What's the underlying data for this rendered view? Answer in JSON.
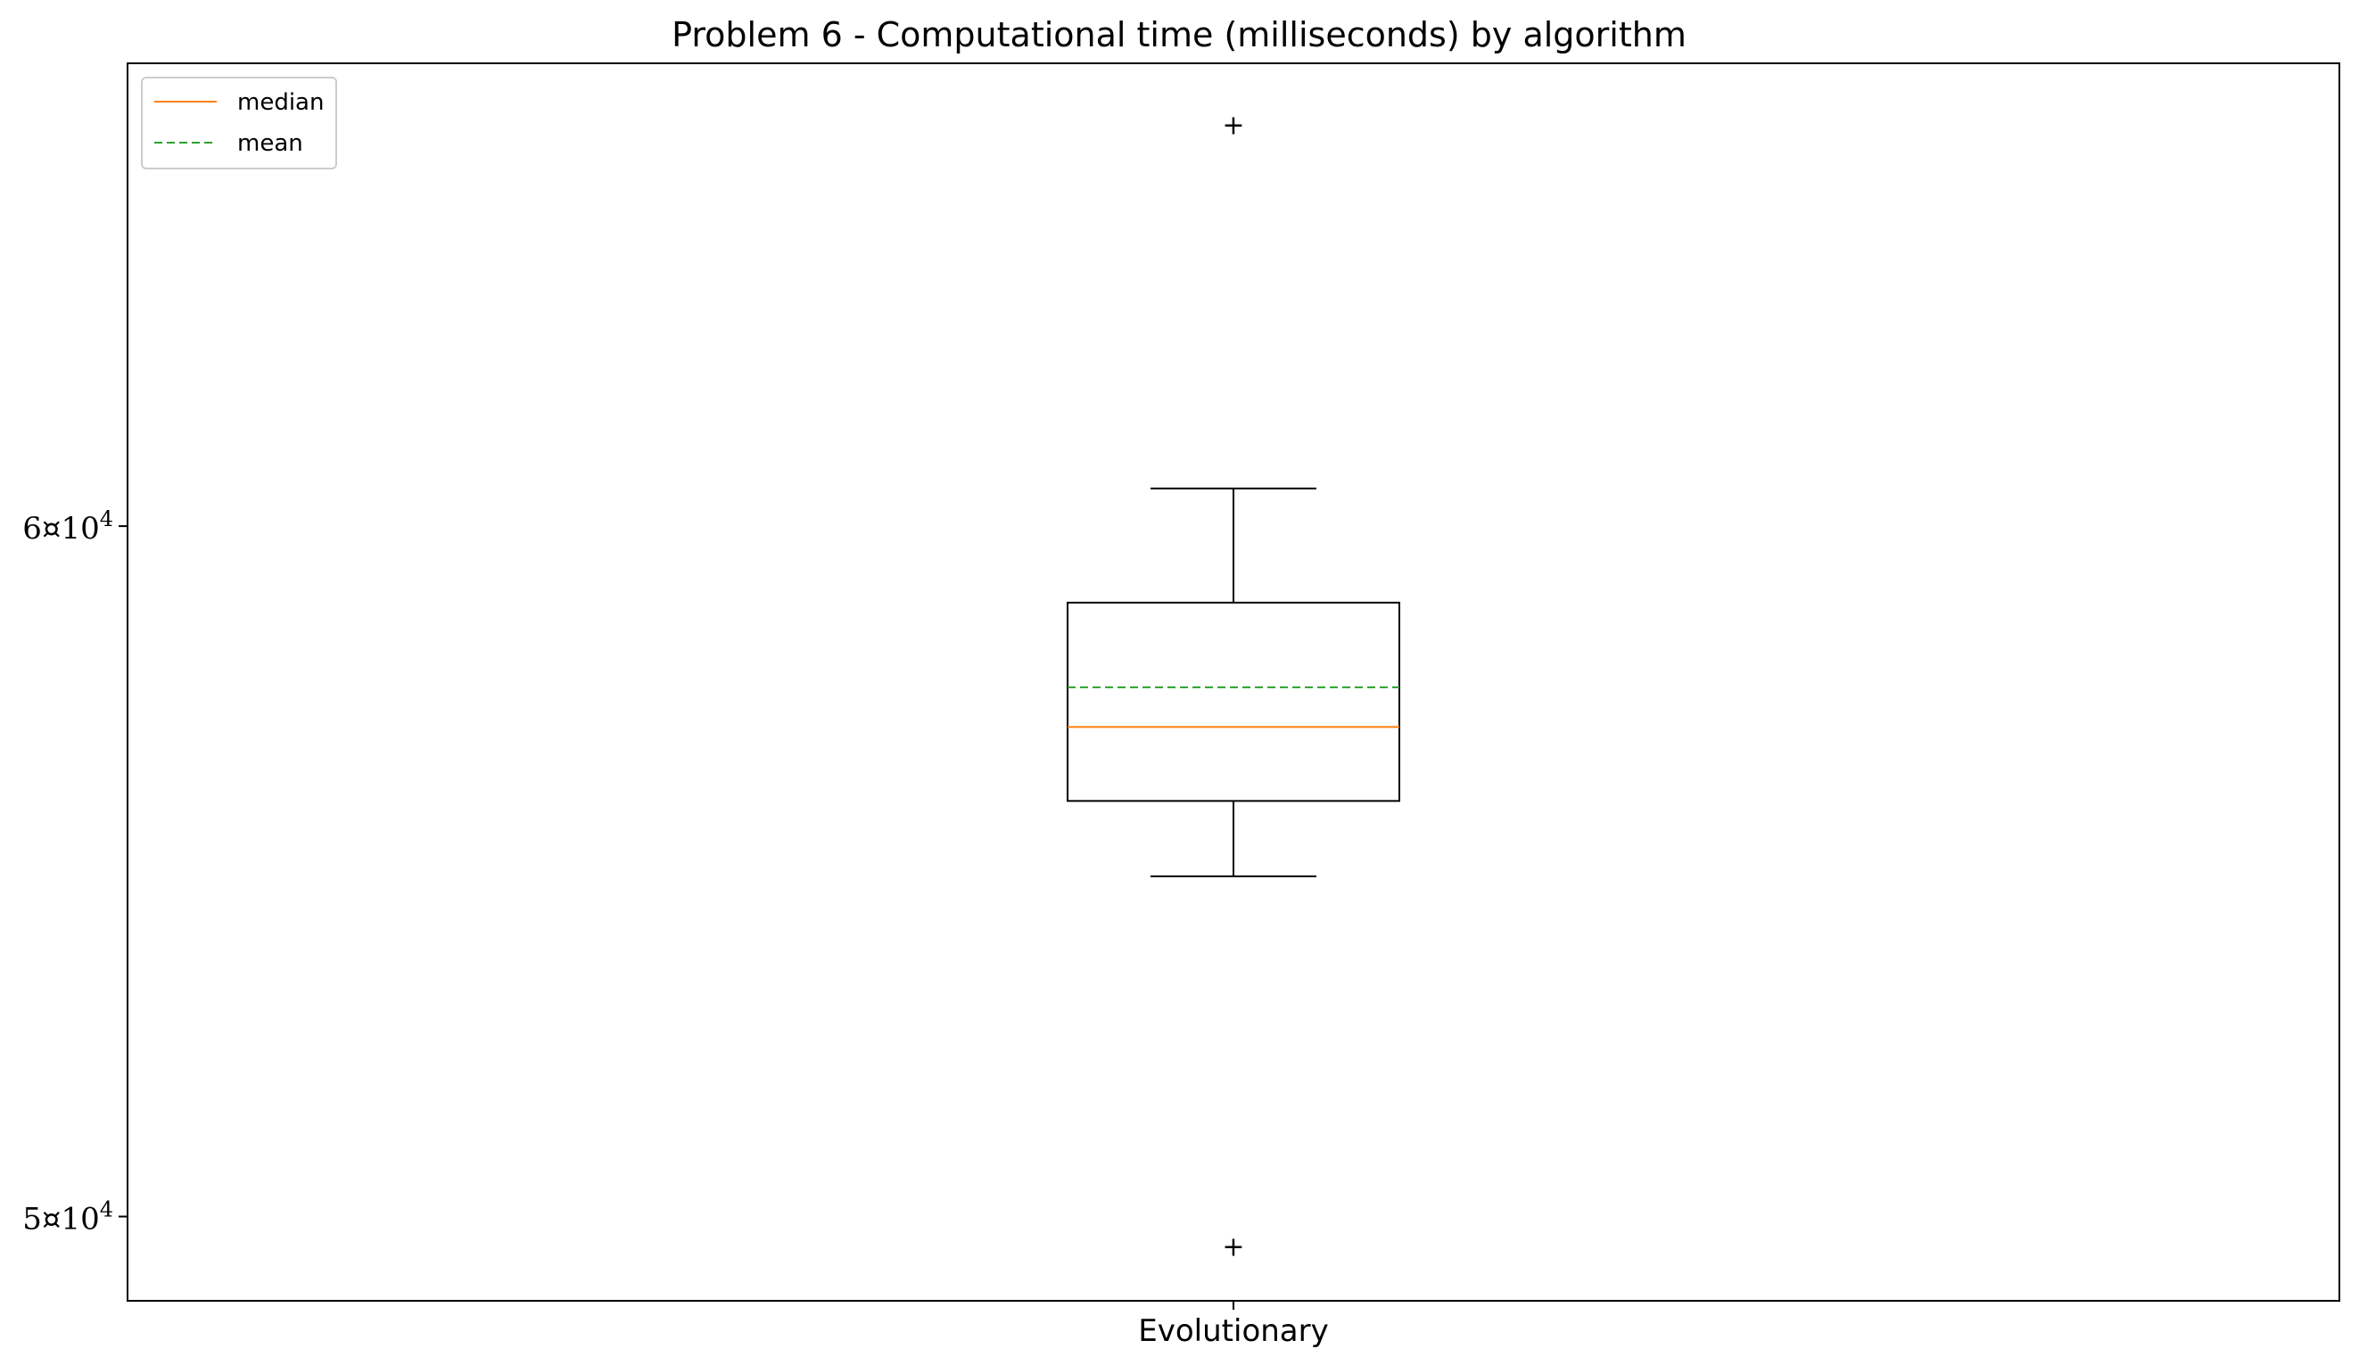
{
  "chart_data": {
    "type": "box",
    "title": "Problem 6 - Computational time (milliseconds) by algorithm",
    "xlabel": "",
    "ylabel": "",
    "yscale": "log",
    "ylim": [
      48900,
      67800
    ],
    "yticks": [
      {
        "value": 50000,
        "mantissa": "5",
        "sep": "¤",
        "base": "10",
        "exp": "4"
      },
      {
        "value": 60000,
        "mantissa": "6",
        "sep": "¤",
        "base": "10",
        "exp": "4"
      }
    ],
    "categories": [
      "Evolutionary"
    ],
    "boxes": [
      {
        "category": "Evolutionary",
        "whisker_low": 54700,
        "q1": 55800,
        "median": 56900,
        "mean": 57500,
        "q3": 58800,
        "whisker_high": 60600,
        "outliers": [
          66700,
          49600
        ]
      }
    ],
    "legend": {
      "position": "top-left",
      "entries": [
        {
          "label": "median",
          "color": "#ff7f0e",
          "style": "solid"
        },
        {
          "label": "mean",
          "color": "#2ca02c",
          "style": "dashed"
        }
      ]
    },
    "grid": false
  }
}
